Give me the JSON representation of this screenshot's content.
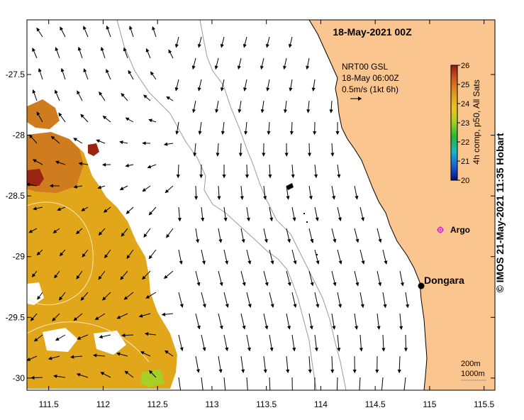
{
  "map": {
    "title": "18-May-2021 00Z",
    "x_ticks": [
      "111.5",
      "112",
      "112.5",
      "113",
      "113.5",
      "114",
      "114.5",
      "115",
      "115.5"
    ],
    "y_ticks": [
      "-27.5",
      "-28",
      "-28.5",
      "-29",
      "-29.5",
      "-30"
    ],
    "lon_range": [
      111.3,
      115.6
    ],
    "lat_range": [
      -30.1,
      -27.05
    ],
    "current_legend": {
      "line1": "NRT00 GSL",
      "line2": "18-May 06:00Z",
      "line3": "0.5m/s (1kt 6h)"
    },
    "colorbar": {
      "ticks": [
        "26",
        "25",
        "24",
        "23",
        "22",
        "21",
        "20"
      ],
      "label": "4h comp, p50, All Sats",
      "range": [
        20,
        26
      ]
    },
    "places": {
      "argo_label": "Argo",
      "town_label": "Dongara"
    },
    "bathymetry_legend": {
      "line1": "200m",
      "line2": "1000m"
    },
    "credit": "© IMOS 21-May-2021 11:35 Hobart",
    "colors": {
      "land": "#fbc590",
      "sst_main": "#e2a61a",
      "sst_warm": "#cf7c1e",
      "sst_hot": "#9a2412",
      "sst_cool": "#a6cf28",
      "argo": "#e020e0",
      "isobath": "#9a9a9a"
    },
    "icons": {
      "argo": "argo-float-icon",
      "town": "town-marker-icon"
    }
  }
}
